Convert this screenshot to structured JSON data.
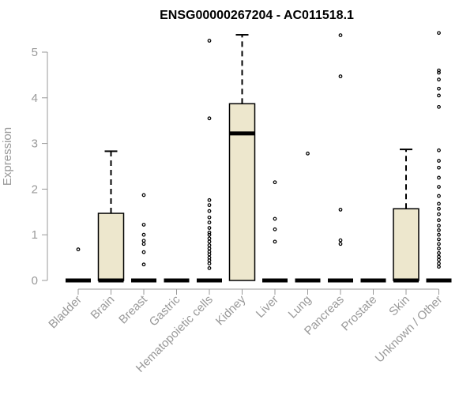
{
  "chart_data": {
    "type": "box",
    "title": "ENSG00000267204 - AC011518.1",
    "ylabel": "Expression",
    "xlabel": "",
    "ylim": [
      0,
      5.4
    ],
    "yticks": [
      0,
      1,
      2,
      3,
      4,
      5
    ],
    "colors": {
      "box_fill": "#ede7cd",
      "box_stroke": "#000000",
      "axis": "#999999"
    },
    "categories": [
      "Bladder",
      "Brain",
      "Breast",
      "Gastric",
      "Hematopoietic cells",
      "Kidney",
      "Liver",
      "Lung",
      "Pancreas",
      "Prostate",
      "Skin",
      "Unknown / Other"
    ],
    "boxes": [
      {
        "category": "Bladder",
        "q1": 0,
        "median": 0,
        "q3": 0,
        "whisker_low": 0,
        "whisker_high": 0,
        "outliers": [
          0.68
        ]
      },
      {
        "category": "Brain",
        "q1": 0,
        "median": 0,
        "q3": 1.47,
        "whisker_low": 0,
        "whisker_high": 2.83,
        "outliers": []
      },
      {
        "category": "Breast",
        "q1": 0,
        "median": 0,
        "q3": 0,
        "whisker_low": 0,
        "whisker_high": 0,
        "outliers": [
          0.35,
          0.62,
          0.8,
          0.87,
          1.0,
          1.22,
          1.87
        ]
      },
      {
        "category": "Gastric",
        "q1": 0,
        "median": 0,
        "q3": 0,
        "whisker_low": 0,
        "whisker_high": 0,
        "outliers": []
      },
      {
        "category": "Hematopoietic cells",
        "q1": 0,
        "median": 0,
        "q3": 0,
        "whisker_low": 0,
        "whisker_high": 0,
        "outliers": [
          0.27,
          0.37,
          0.44,
          0.5,
          0.57,
          0.63,
          0.7,
          0.77,
          0.85,
          0.92,
          1.0,
          1.05,
          1.15,
          1.27,
          1.38,
          1.52,
          1.65,
          1.76,
          3.55,
          5.25
        ]
      },
      {
        "category": "Kidney",
        "q1": 0,
        "median": 3.22,
        "q3": 3.87,
        "whisker_low": 0,
        "whisker_high": 5.38,
        "outliers": []
      },
      {
        "category": "Liver",
        "q1": 0,
        "median": 0,
        "q3": 0,
        "whisker_low": 0,
        "whisker_high": 0,
        "outliers": [
          0.85,
          1.12,
          1.35,
          2.15
        ]
      },
      {
        "category": "Lung",
        "q1": 0,
        "median": 0,
        "q3": 0,
        "whisker_low": 0,
        "whisker_high": 0,
        "outliers": [
          2.78
        ]
      },
      {
        "category": "Pancreas",
        "q1": 0,
        "median": 0,
        "q3": 0,
        "whisker_low": 0,
        "whisker_high": 0,
        "outliers": [
          0.8,
          0.88,
          1.55,
          4.47,
          5.37
        ]
      },
      {
        "category": "Prostate",
        "q1": 0,
        "median": 0,
        "q3": 0,
        "whisker_low": 0,
        "whisker_high": 0,
        "outliers": []
      },
      {
        "category": "Skin",
        "q1": 0,
        "median": 0,
        "q3": 1.57,
        "whisker_low": 0,
        "whisker_high": 2.87,
        "outliers": []
      },
      {
        "category": "Unknown / Other",
        "q1": 0,
        "median": 0,
        "q3": 0,
        "whisker_low": 0,
        "whisker_high": 0,
        "outliers": [
          0.3,
          0.37,
          0.45,
          0.52,
          0.6,
          0.7,
          0.8,
          0.9,
          1.0,
          1.1,
          1.2,
          1.32,
          1.45,
          1.57,
          1.68,
          1.85,
          2.05,
          2.25,
          2.47,
          2.62,
          2.85,
          3.8,
          4.05,
          4.2,
          4.4,
          4.55,
          4.6,
          5.42
        ]
      }
    ],
    "grid": false,
    "legend": "none"
  }
}
